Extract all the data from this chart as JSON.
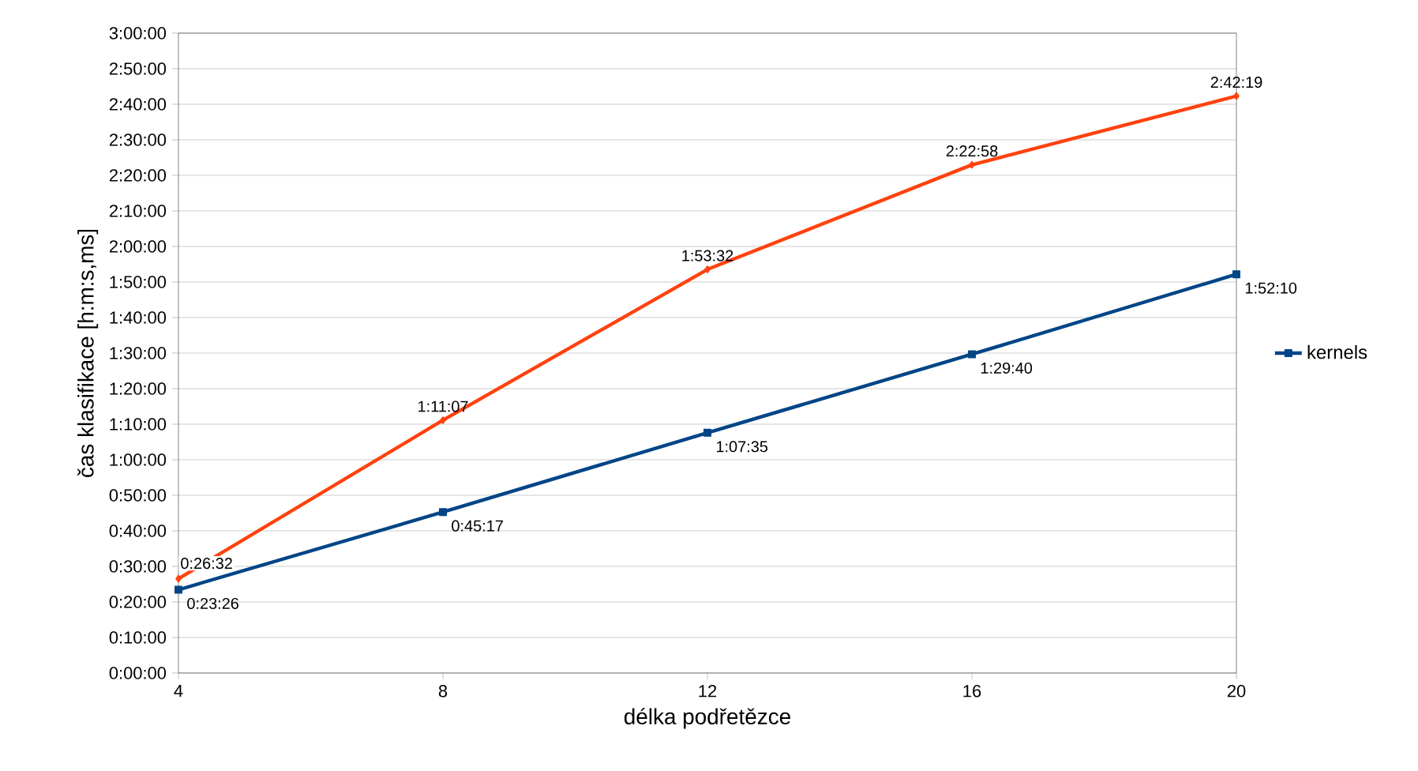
{
  "chart_data": {
    "type": "line",
    "xlabel": "délka podřetězce",
    "ylabel": "čas klasifikace [h:m:s,ms]",
    "x": [
      4,
      8,
      12,
      16,
      20
    ],
    "xlim": [
      4,
      20
    ],
    "xticks": [
      4,
      8,
      12,
      16,
      20
    ],
    "ylim": [
      0,
      10800
    ],
    "yticks": [
      {
        "value": 0,
        "label": "0:00:00"
      },
      {
        "value": 600,
        "label": "0:10:00"
      },
      {
        "value": 1200,
        "label": "0:20:00"
      },
      {
        "value": 1800,
        "label": "0:30:00"
      },
      {
        "value": 2400,
        "label": "0:40:00"
      },
      {
        "value": 3000,
        "label": "0:50:00"
      },
      {
        "value": 3600,
        "label": "1:00:00"
      },
      {
        "value": 4200,
        "label": "1:10:00"
      },
      {
        "value": 4800,
        "label": "1:20:00"
      },
      {
        "value": 5400,
        "label": "1:30:00"
      },
      {
        "value": 6000,
        "label": "1:40:00"
      },
      {
        "value": 6600,
        "label": "1:50:00"
      },
      {
        "value": 7200,
        "label": "2:00:00"
      },
      {
        "value": 7800,
        "label": "2:10:00"
      },
      {
        "value": 8400,
        "label": "2:20:00"
      },
      {
        "value": 9000,
        "label": "2:30:00"
      },
      {
        "value": 9600,
        "label": "2:40:00"
      },
      {
        "value": 10200,
        "label": "2:50:00"
      },
      {
        "value": 10800,
        "label": "3:00:00"
      }
    ],
    "grid": "y",
    "legend": "right",
    "line_style": "solid",
    "series": [
      {
        "name": "kernels",
        "color": "#004586",
        "marker": "square",
        "values": [
          1406,
          2717,
          4055,
          5380,
          6730
        ],
        "value_labels": [
          "0:23:26",
          "0:45:17",
          "1:07:35",
          "1:29:40",
          "1:52:10"
        ]
      },
      {
        "color": "#ff420e",
        "marker": "diamond",
        "values": [
          1592,
          4267,
          6812,
          8578,
          9739
        ],
        "value_labels": [
          "0:26:32",
          "1:11:07",
          "1:53:32",
          "2:22:58",
          "2:42:19"
        ]
      }
    ]
  }
}
